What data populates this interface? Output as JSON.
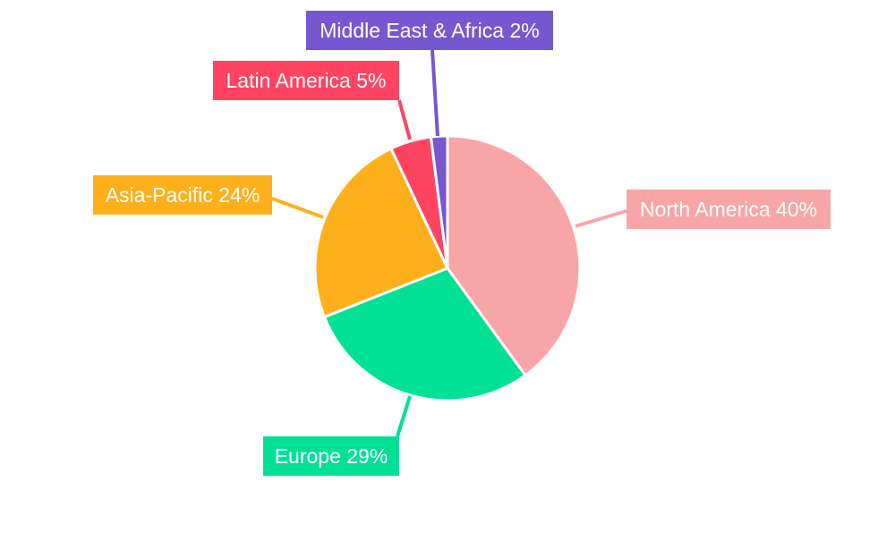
{
  "chart_data": {
    "type": "pie",
    "title": "",
    "slices": [
      {
        "label": "North America",
        "value": 40,
        "display": "North America 40%",
        "color": "#F8A5A7"
      },
      {
        "label": "Europe",
        "value": 29,
        "display": "Europe 29%",
        "color": "#00E196"
      },
      {
        "label": "Asia-Pacific",
        "value": 24,
        "display": "Asia-Pacific 24%",
        "color": "#FDB01B"
      },
      {
        "label": "Latin America",
        "value": 5,
        "display": "Latin America 5%",
        "color": "#FF4462"
      },
      {
        "label": "Middle East & Africa",
        "value": 2,
        "display": "Middle East & Africa 2%",
        "color": "#7757CF"
      }
    ],
    "label_text_color": "#ffffff",
    "legend": "none"
  }
}
